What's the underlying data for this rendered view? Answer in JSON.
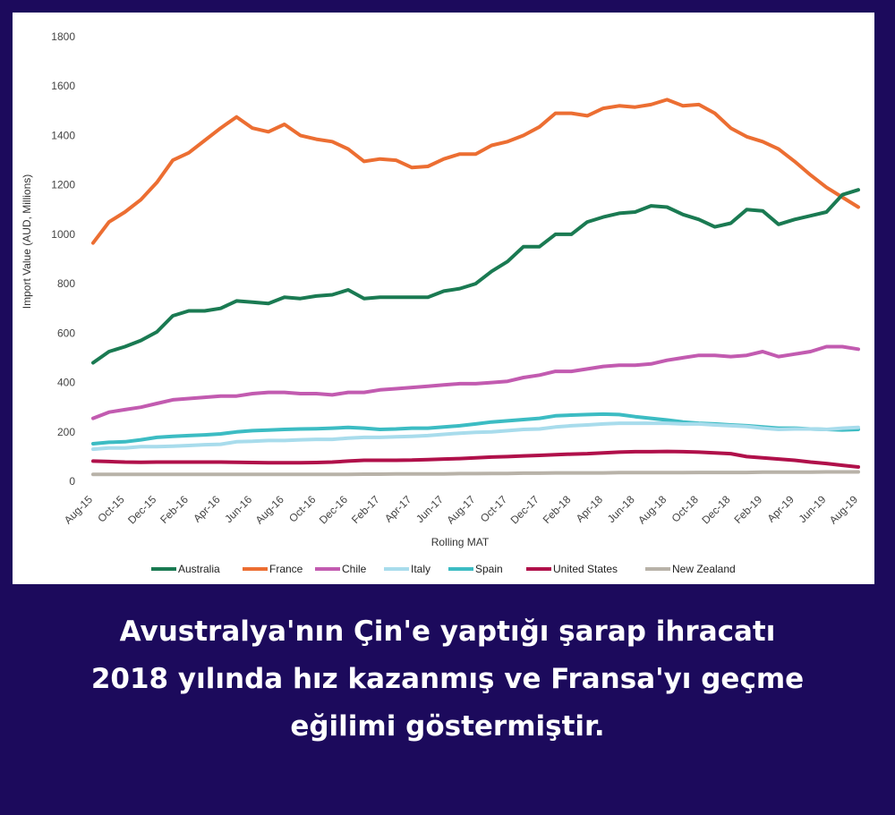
{
  "chart_data": {
    "type": "line",
    "title": "",
    "xlabel": "Rolling MAT",
    "ylabel": "Import Value (AUD, Millions)",
    "ylim": [
      0,
      1800
    ],
    "yticks": [
      0,
      200,
      400,
      600,
      800,
      1000,
      1200,
      1400,
      1600,
      1800
    ],
    "x": [
      "Aug-15",
      "Sep-15",
      "Oct-15",
      "Nov-15",
      "Dec-15",
      "Jan-16",
      "Feb-16",
      "Mar-16",
      "Apr-16",
      "May-16",
      "Jun-16",
      "Jul-16",
      "Aug-16",
      "Sep-16",
      "Oct-16",
      "Nov-16",
      "Dec-16",
      "Jan-17",
      "Feb-17",
      "Mar-17",
      "Apr-17",
      "May-17",
      "Jun-17",
      "Jul-17",
      "Aug-17",
      "Sep-17",
      "Oct-17",
      "Nov-17",
      "Dec-17",
      "Jan-18",
      "Feb-18",
      "Mar-18",
      "Apr-18",
      "May-18",
      "Jun-18",
      "Jul-18",
      "Aug-18",
      "Sep-18",
      "Oct-18",
      "Nov-18",
      "Dec-18",
      "Jan-19",
      "Feb-19",
      "Mar-19",
      "Apr-19",
      "May-19",
      "Jun-19",
      "Jul-19",
      "Aug-19"
    ],
    "xtick_labels": [
      "Aug-15",
      "Oct-15",
      "Dec-15",
      "Feb-16",
      "Apr-16",
      "Jun-16",
      "Aug-16",
      "Oct-16",
      "Dec-16",
      "Feb-17",
      "Apr-17",
      "Jun-17",
      "Aug-17",
      "Oct-17",
      "Dec-17",
      "Feb-18",
      "Apr-18",
      "Jun-18",
      "Aug-18",
      "Oct-18",
      "Dec-18",
      "Feb-19",
      "Apr-19",
      "Jun-19",
      "Aug-19"
    ],
    "legend_position": "bottom",
    "series": [
      {
        "name": "Australia",
        "color": "#1a7a52",
        "values": [
          480,
          525,
          545,
          570,
          605,
          670,
          690,
          690,
          700,
          730,
          725,
          720,
          745,
          740,
          750,
          755,
          775,
          740,
          745,
          745,
          745,
          745,
          770,
          780,
          800,
          850,
          890,
          950,
          950,
          1000,
          1000,
          1050,
          1070,
          1085,
          1090,
          1115,
          1110,
          1080,
          1060,
          1030,
          1045,
          1100,
          1095,
          1040,
          1060,
          1075,
          1090,
          1160,
          1180
        ]
      },
      {
        "name": "France",
        "color": "#ec6e32",
        "values": [
          965,
          1050,
          1090,
          1140,
          1210,
          1300,
          1330,
          1380,
          1430,
          1475,
          1430,
          1415,
          1445,
          1400,
          1385,
          1375,
          1345,
          1295,
          1305,
          1300,
          1270,
          1275,
          1305,
          1325,
          1325,
          1360,
          1375,
          1400,
          1435,
          1490,
          1490,
          1480,
          1510,
          1520,
          1515,
          1525,
          1545,
          1520,
          1525,
          1490,
          1430,
          1395,
          1375,
          1345,
          1295,
          1240,
          1190,
          1150,
          1110
        ]
      },
      {
        "name": "Chile",
        "color": "#c25bb0",
        "values": [
          255,
          280,
          290,
          300,
          315,
          330,
          335,
          340,
          345,
          345,
          355,
          360,
          360,
          355,
          355,
          350,
          360,
          360,
          370,
          375,
          380,
          385,
          390,
          395,
          395,
          400,
          405,
          420,
          430,
          445,
          445,
          455,
          465,
          470,
          470,
          475,
          490,
          500,
          510,
          510,
          505,
          510,
          525,
          505,
          515,
          525,
          545,
          545,
          535
        ]
      },
      {
        "name": "Italy",
        "color": "#a8dcec",
        "values": [
          130,
          135,
          135,
          140,
          140,
          142,
          145,
          148,
          150,
          160,
          162,
          165,
          165,
          168,
          170,
          170,
          175,
          178,
          178,
          180,
          182,
          185,
          190,
          195,
          198,
          200,
          205,
          210,
          212,
          220,
          225,
          228,
          232,
          235,
          235,
          235,
          235,
          232,
          232,
          228,
          225,
          222,
          215,
          210,
          212,
          212,
          210,
          215,
          218
        ]
      },
      {
        "name": "Spain",
        "color": "#3cbcc3",
        "values": [
          152,
          158,
          160,
          168,
          178,
          182,
          185,
          188,
          192,
          200,
          205,
          207,
          210,
          212,
          213,
          215,
          218,
          215,
          210,
          212,
          215,
          215,
          220,
          225,
          232,
          240,
          245,
          250,
          255,
          265,
          268,
          270,
          272,
          270,
          262,
          255,
          248,
          240,
          235,
          232,
          228,
          225,
          220,
          215,
          215,
          212,
          210,
          208,
          210
        ]
      },
      {
        "name": "United States",
        "color": "#b0104a",
        "values": [
          82,
          80,
          78,
          77,
          78,
          78,
          78,
          78,
          78,
          77,
          76,
          75,
          75,
          75,
          76,
          78,
          82,
          85,
          85,
          85,
          86,
          88,
          90,
          92,
          95,
          98,
          100,
          103,
          105,
          108,
          110,
          112,
          115,
          118,
          120,
          120,
          121,
          120,
          118,
          115,
          112,
          100,
          95,
          90,
          85,
          78,
          72,
          65,
          58
        ]
      },
      {
        "name": "New Zealand",
        "color": "#b8b2a8",
        "values": [
          28,
          28,
          28,
          28,
          28,
          28,
          28,
          28,
          28,
          28,
          28,
          28,
          28,
          28,
          28,
          28,
          28,
          29,
          29,
          30,
          30,
          30,
          30,
          31,
          31,
          32,
          32,
          33,
          33,
          34,
          34,
          34,
          34,
          35,
          35,
          35,
          35,
          35,
          36,
          36,
          36,
          36,
          37,
          37,
          37,
          37,
          38,
          38,
          38
        ]
      }
    ]
  },
  "caption": {
    "line1": "Avustralya'nın Çin'e yaptığı şarap ihracatı",
    "line2": "2018 yılında hız kazanmış ve Fransa'yı geçme",
    "line3": "eğilimi göstermiştir."
  }
}
